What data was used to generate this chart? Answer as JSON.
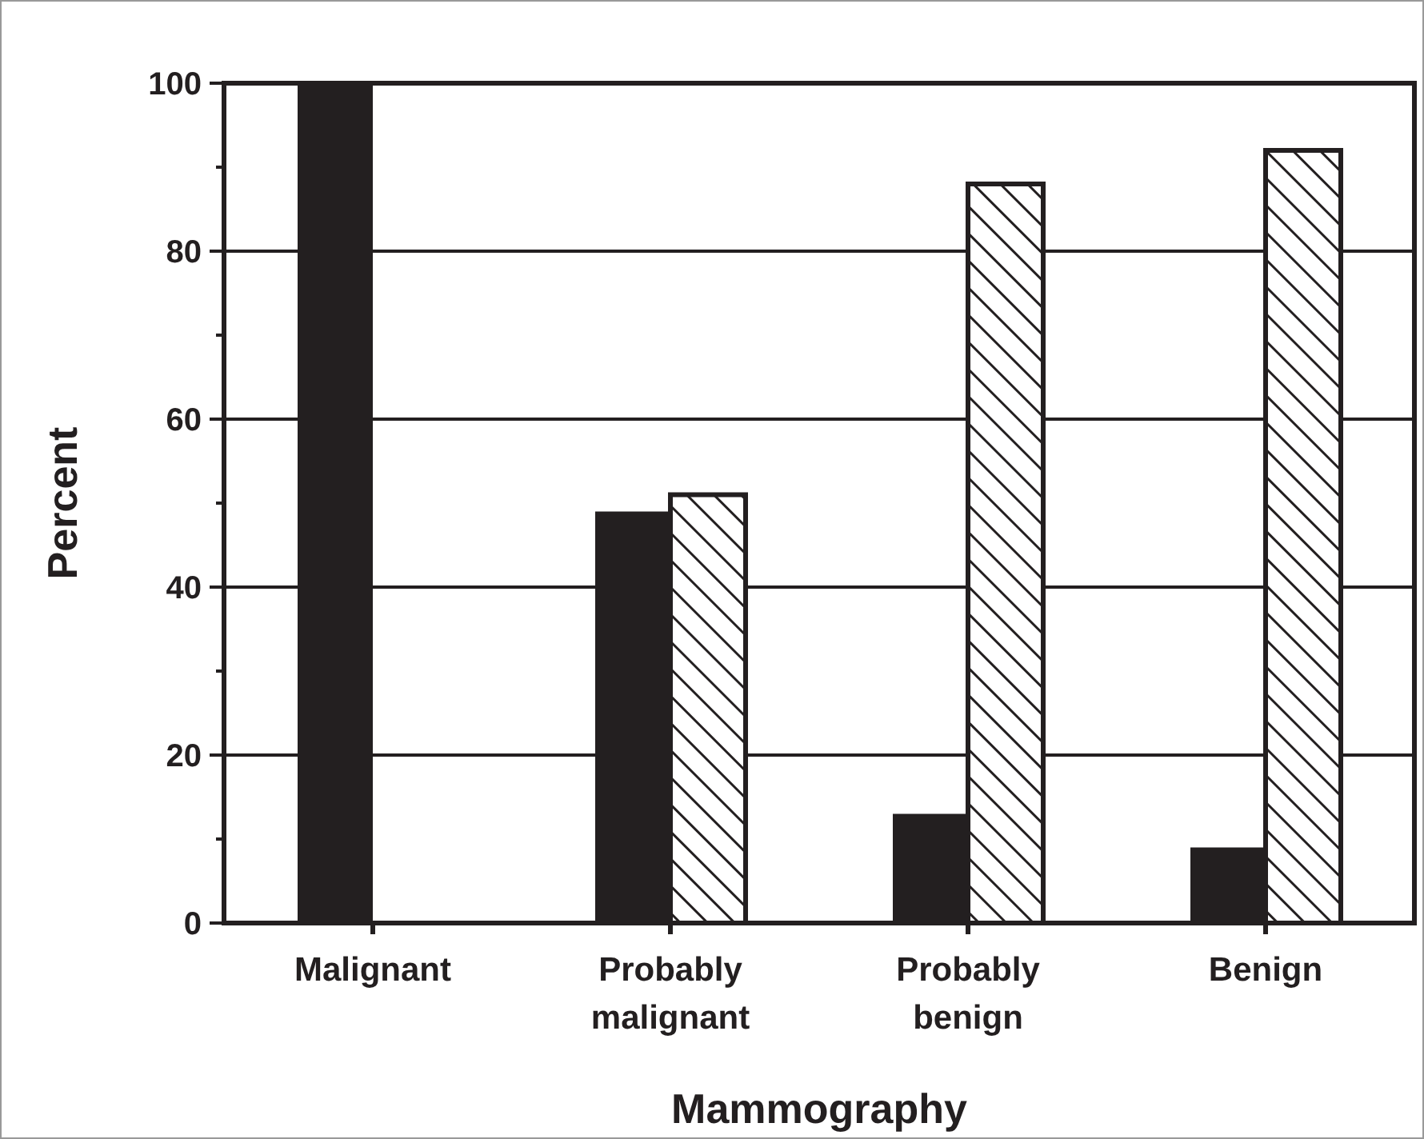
{
  "chart_data": {
    "type": "bar",
    "xlabel": "Mammography",
    "ylabel": "Percent",
    "categories": [
      "Malignant",
      "Probably\nmalignant",
      "Probably\nbenign",
      "Benign"
    ],
    "series": [
      {
        "color": "#231f20",
        "values": [
          100,
          49,
          13,
          9
        ]
      },
      {
        "color": "#231f20",
        "values": [
          0,
          51,
          88,
          92
        ]
      }
    ],
    "ylim": [
      0,
      100
    ],
    "yticks": [
      0,
      {
        "value": 10,
        "label": null
      },
      20,
      {
        "value": 30,
        "label": null
      },
      40,
      {
        "value": 50,
        "label": null
      },
      60,
      {
        "value": 70,
        "label": null
      },
      80,
      {
        "value": 90,
        "label": null
      },
      100
    ],
    "grid": "y"
  }
}
